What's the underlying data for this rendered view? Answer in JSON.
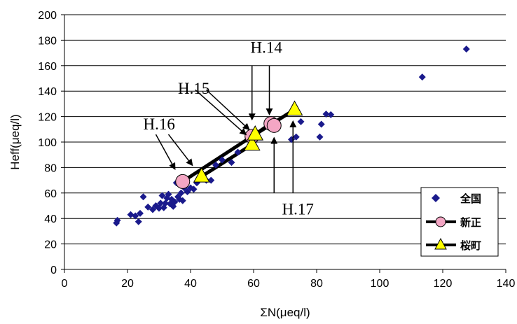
{
  "chart_data": {
    "type": "scatter",
    "title": "",
    "xlabel": "ΣN(μeq/l)",
    "ylabel": "Heff(μeq/l)",
    "xlim": [
      0,
      140
    ],
    "ylim": [
      0,
      200
    ],
    "xticks": [
      0,
      20,
      40,
      60,
      80,
      100,
      120,
      140
    ],
    "yticks": [
      0,
      20,
      40,
      60,
      80,
      100,
      120,
      140,
      160,
      180,
      200
    ],
    "xtick_labels": [
      "0",
      "20",
      "40",
      "60",
      "80",
      "100",
      "120",
      "140"
    ],
    "ytick_labels": [
      "0",
      "20",
      "40",
      "60",
      "80",
      "100",
      "120",
      "140",
      "160",
      "180",
      "200"
    ],
    "grid": "horizontal",
    "legend_position": "bottom-right",
    "series": [
      {
        "name": "全国",
        "marker": "diamond",
        "color": "#1a1a8c",
        "points": [
          [
            16.5,
            36.5
          ],
          [
            16.8,
            38.5
          ],
          [
            21.0,
            43.0
          ],
          [
            22.5,
            42.0
          ],
          [
            23.5,
            37.5
          ],
          [
            24.0,
            44.0
          ],
          [
            25.0,
            57.0
          ],
          [
            26.5,
            49.0
          ],
          [
            28.0,
            47.0
          ],
          [
            29.0,
            50.0
          ],
          [
            30.0,
            48.0
          ],
          [
            30.5,
            52.0
          ],
          [
            31.0,
            58.0
          ],
          [
            31.5,
            48.5
          ],
          [
            32.0,
            52.0
          ],
          [
            32.5,
            56.0
          ],
          [
            33.0,
            59.0
          ],
          [
            33.5,
            51.5
          ],
          [
            34.0,
            55.0
          ],
          [
            34.5,
            49.5
          ],
          [
            35.0,
            53.0
          ],
          [
            35.5,
            68.0
          ],
          [
            36.0,
            57.0
          ],
          [
            36.5,
            55.0
          ],
          [
            37.0,
            60.0
          ],
          [
            37.5,
            54.0
          ],
          [
            38.0,
            64.0
          ],
          [
            39.0,
            61.0
          ],
          [
            40.0,
            64.0
          ],
          [
            41.0,
            63.0
          ],
          [
            42.0,
            68.0
          ],
          [
            43.5,
            72.0
          ],
          [
            45.0,
            70.0
          ],
          [
            46.5,
            70.0
          ],
          [
            48.0,
            82.0
          ],
          [
            50.0,
            86.0
          ],
          [
            53.0,
            84.0
          ],
          [
            55.0,
            92.0
          ],
          [
            60.0,
            100.0
          ],
          [
            72.0,
            102.0
          ],
          [
            73.5,
            104.0
          ],
          [
            75.0,
            116.0
          ],
          [
            81.0,
            104.0
          ],
          [
            81.5,
            114.0
          ],
          [
            83.0,
            122.0
          ],
          [
            84.5,
            121.5
          ],
          [
            113.5,
            151.0
          ],
          [
            127.5,
            173.0
          ]
        ]
      },
      {
        "name": "新正",
        "marker": "circle",
        "color": "#f4a6c4",
        "points": [
          [
            37.5,
            69.0
          ],
          [
            59.5,
            104.5
          ],
          [
            65.5,
            114.5
          ],
          [
            66.5,
            113.0
          ]
        ]
      },
      {
        "name": "桜町",
        "marker": "triangle",
        "color": "#ffff00",
        "points": [
          [
            43.5,
            73.0
          ],
          [
            59.5,
            98.0
          ],
          [
            60.5,
            106.0
          ],
          [
            73.0,
            125.5
          ]
        ]
      }
    ],
    "annotations": [
      {
        "text": "H.14",
        "label_at": [
          59.0,
          170.0
        ],
        "arrows": [
          [
            [
              59.5,
              160.0
            ],
            [
              59.5,
              118.0
            ]
          ],
          [
            [
              65.0,
              160.0
            ],
            [
              65.0,
              122.0
            ]
          ]
        ]
      },
      {
        "text": "H.15",
        "label_at": [
          36.0,
          138.0
        ],
        "arrows": [
          [
            [
              41.5,
              141.0
            ],
            [
              57.5,
              106.0
            ]
          ],
          [
            [
              45.0,
              141.0
            ],
            [
              58.5,
              110.0
            ]
          ]
        ]
      },
      {
        "text": "H.16",
        "label_at": [
          25.0,
          110.0
        ],
        "arrows": [
          [
            [
              29.0,
              106.0
            ],
            [
              35.0,
              79.0
            ]
          ],
          [
            [
              33.0,
              106.0
            ],
            [
              40.5,
              82.0
            ]
          ]
        ]
      },
      {
        "text": "H.17",
        "label_at": [
          69.0,
          43.0
        ],
        "arrows": [
          [
            [
              66.5,
              60.0
            ],
            [
              66.5,
              103.0
            ]
          ],
          [
            [
              72.5,
              60.0
            ],
            [
              72.5,
              116.0
            ]
          ]
        ]
      }
    ]
  }
}
